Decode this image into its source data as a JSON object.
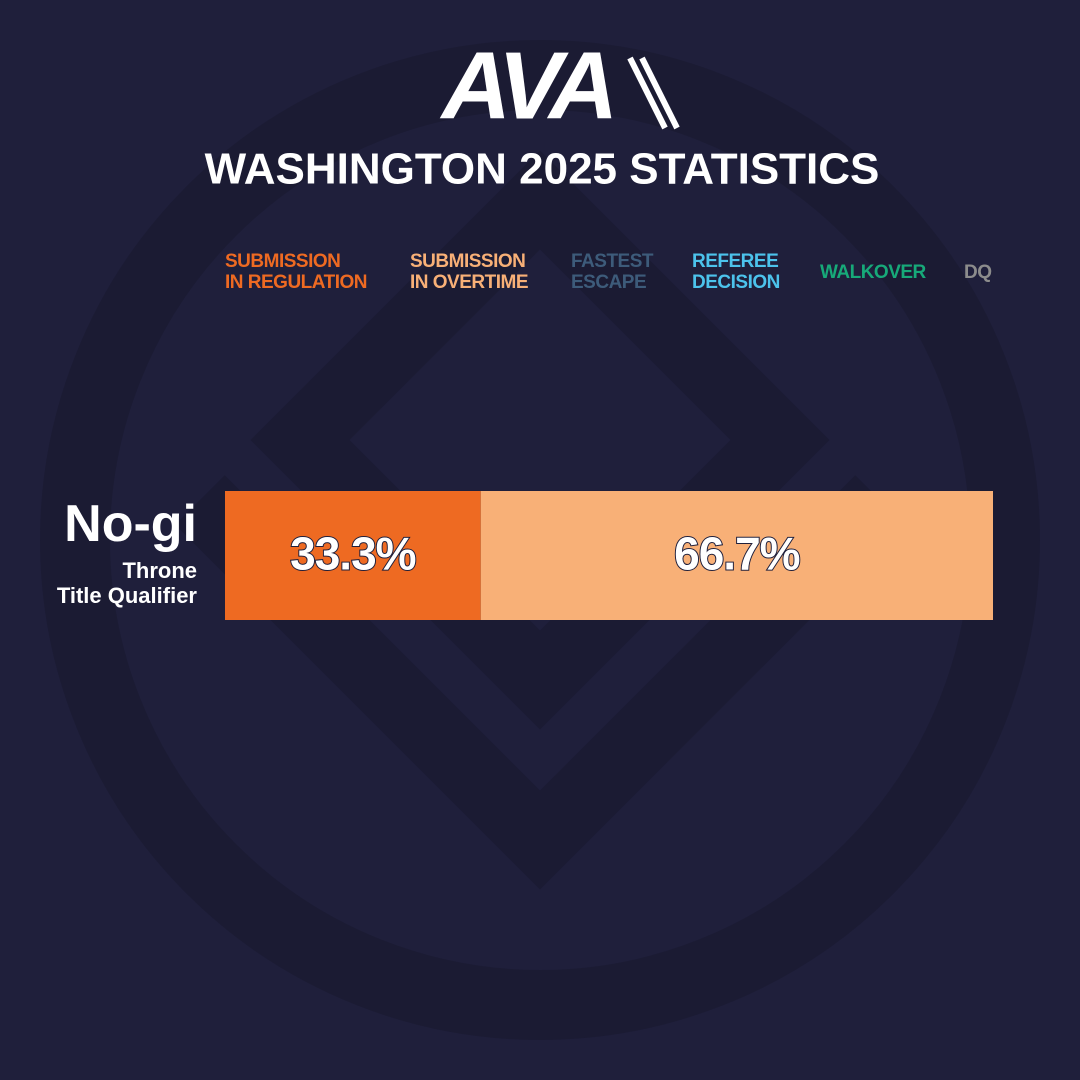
{
  "chart_data": {
    "type": "bar",
    "orientation": "horizontal",
    "stacked": true,
    "logo": "AVA",
    "title": "WASHINGTON 2025 STATISTICS",
    "categories": [
      "No-gi"
    ],
    "category_sublabels": [
      "Throne\nTitle Qualifier"
    ],
    "series": [
      {
        "name": "SUBMISSION\nIN REGULATION",
        "color": "#ee6a22",
        "values": [
          33.3
        ],
        "value_labels": [
          "33.3%"
        ]
      },
      {
        "name": "SUBMISSION\nIN OVERTIME",
        "color": "#f8b077",
        "values": [
          66.7
        ],
        "value_labels": [
          "66.7%"
        ]
      },
      {
        "name": "FASTEST\nESCAPE",
        "color": "#3d5b7a",
        "values": [
          0
        ]
      },
      {
        "name": "REFEREE\nDECISION",
        "color": "#4cc3ec",
        "values": [
          0
        ]
      },
      {
        "name": "WALKOVER",
        "color": "#17a979",
        "values": [
          0
        ]
      },
      {
        "name": "DQ",
        "color": "#8c8c8c",
        "values": [
          0
        ]
      }
    ]
  }
}
